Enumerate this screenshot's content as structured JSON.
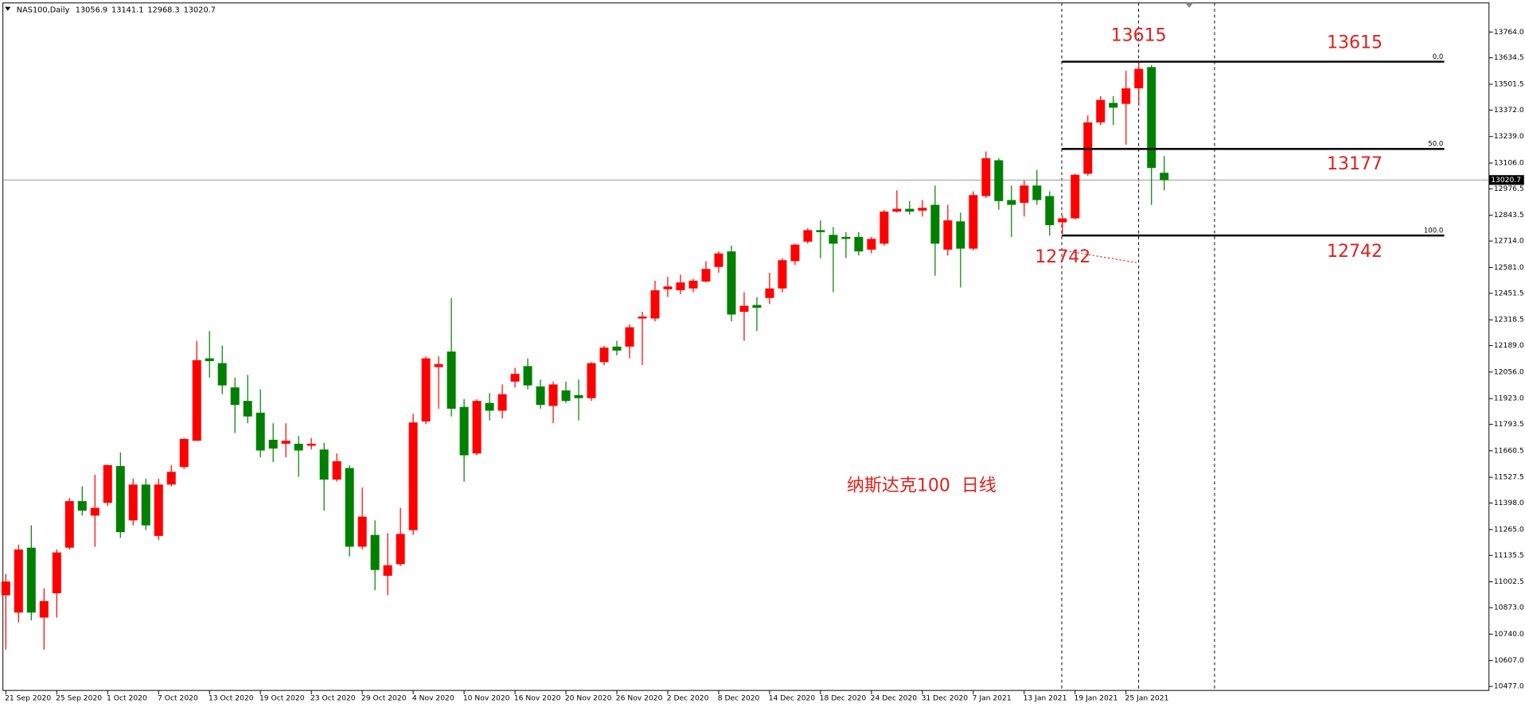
{
  "chart_data": {
    "type": "candlestick",
    "title": "NAS100,Daily",
    "x": [
      "21 Sep 2020",
      null,
      null,
      null,
      "25 Sep 2020",
      null,
      null,
      null,
      "1 Oct 2020",
      null,
      null,
      null,
      "7 Oct 2020",
      null,
      null,
      null,
      "13 Oct 2020",
      null,
      null,
      null,
      "19 Oct 2020",
      null,
      null,
      null,
      "23 Oct 2020",
      null,
      null,
      null,
      "29 Oct 2020",
      null,
      null,
      null,
      "4 Nov 2020",
      null,
      null,
      null,
      "10 Nov 2020",
      null,
      null,
      null,
      "16 Nov 2020",
      null,
      null,
      null,
      "20 Nov 2020",
      null,
      null,
      null,
      "26 Nov 2020",
      null,
      null,
      null,
      "2 Dec 2020",
      null,
      null,
      null,
      "8 Dec 2020",
      null,
      null,
      null,
      "14 Dec 2020",
      null,
      null,
      null,
      "18 Dec 2020",
      null,
      null,
      null,
      "24 Dec 2020",
      null,
      null,
      null,
      "31 Dec 2020",
      null,
      null,
      null,
      "7 Jan 2021",
      null,
      null,
      null,
      "13 Jan 2021",
      null,
      null,
      null,
      "19 Jan 2021",
      null,
      null,
      null,
      "25 Jan 2021",
      null,
      null,
      null
    ],
    "open": [
      10935,
      10848,
      11174,
      10823,
      10945,
      11174,
      11408,
      11335,
      11399,
      11584,
      11311,
      11491,
      11233,
      11491,
      11579,
      11711,
      12125,
      12101,
      11979,
      11911,
      11852,
      11716,
      11696,
      11696,
      11686,
      11667,
      11516,
      11574,
      11179,
      11238,
      11033,
      11091,
      11262,
      11808,
      12081,
      12159,
      11881,
      11647,
      11901,
      11862,
      12008,
      12086,
      11984,
      11886,
      11964,
      11940,
      11925,
      12106,
      12184,
      12184,
      12325,
      12325,
      12472,
      12467,
      12476,
      12511,
      12584,
      12662,
      12359,
      12393,
      12428,
      12476,
      12613,
      12711,
      12769,
      12745,
      12735,
      12735,
      12671,
      12701,
      12862,
      12876,
      12867,
      12896,
      12671,
      12813,
      12676,
      12940,
      13120,
      12920,
      12906,
      12993,
      12940,
      12808,
      12828,
      13052,
      13310,
      13408,
      13403,
      13481,
      13588,
      13056.9
    ],
    "high": [
      11043,
      11189,
      11286,
      10970,
      11165,
      11423,
      11482,
      11540,
      11589,
      11652,
      11521,
      11521,
      11521,
      11589,
      11725,
      12213,
      12262,
      12189,
      12028,
      12042,
      11969,
      11799,
      11799,
      11735,
      11725,
      11701,
      11647,
      11589,
      11477,
      11311,
      11247,
      11374,
      11847,
      12135,
      12135,
      12428,
      11920,
      11920,
      11950,
      11994,
      12077,
      12125,
      12018,
      12008,
      12008,
      12018,
      12106,
      12189,
      12213,
      12296,
      12359,
      12515,
      12535,
      12545,
      12525,
      12613,
      12662,
      12691,
      12457,
      12433,
      12555,
      12628,
      12701,
      12779,
      12818,
      12784,
      12759,
      12759,
      12735,
      12871,
      12969,
      12915,
      12920,
      12993,
      12896,
      12857,
      12964,
      13164,
      13130,
      12993,
      13018,
      13071,
      12964,
      12842,
      13052,
      13345,
      13442,
      13442,
      13569,
      13615,
      13598,
      13141.1
    ],
    "low": [
      10662,
      10799,
      10809,
      10662,
      10823,
      11165,
      11335,
      11179,
      11384,
      11223,
      11286,
      11262,
      11213,
      11482,
      11569,
      11711,
      12028,
      11945,
      11750,
      11799,
      11628,
      11604,
      11628,
      11530,
      11667,
      11360,
      11506,
      11130,
      11165,
      10960,
      10935,
      11082,
      11238,
      11794,
      11872,
      11833,
      11506,
      11638,
      11813,
      11823,
      11979,
      11969,
      11872,
      11799,
      11901,
      11813,
      11911,
      12091,
      12140,
      12125,
      12091,
      12311,
      12433,
      12447,
      12457,
      12506,
      12555,
      12311,
      12213,
      12262,
      12398,
      12457,
      12594,
      12701,
      12628,
      12457,
      12628,
      12642,
      12652,
      12691,
      12857,
      12847,
      12837,
      12540,
      12642,
      12481,
      12667,
      12930,
      12871,
      12735,
      12837,
      12896,
      12742,
      12750,
      12823,
      13042,
      13296,
      13296,
      13198,
      13393,
      12896,
      12968.3
    ],
    "close": [
      11004,
      11165,
      10848,
      10906,
      11150,
      11408,
      11360,
      11374,
      11589,
      11252,
      11491,
      11286,
      11491,
      11555,
      11720,
      12116,
      12111,
      11989,
      11891,
      11833,
      11662,
      11672,
      11711,
      11662,
      11696,
      11516,
      11608,
      11179,
      11330,
      11062,
      11086,
      11243,
      11803,
      12125,
      12096,
      11872,
      11638,
      11911,
      11862,
      11945,
      12047,
      11989,
      11891,
      11994,
      11911,
      11925,
      12101,
      12179,
      12164,
      12281,
      12335,
      12467,
      12486,
      12506,
      12515,
      12574,
      12652,
      12345,
      12389,
      12379,
      12476,
      12618,
      12696,
      12769,
      12759,
      12701,
      12725,
      12662,
      12725,
      12862,
      12876,
      12862,
      12881,
      12701,
      12818,
      12676,
      12945,
      13130,
      12915,
      12896,
      12993,
      12920,
      12794,
      12828,
      13047,
      13310,
      13423,
      13384,
      13481,
      13579,
      13081,
      13020.7
    ],
    "up_color": "#ff0000",
    "down_color": "#008000",
    "ylim": [
      10457,
      13910
    ],
    "yticks": [
      {
        "value": 13764,
        "label": "13764.0"
      },
      13634.5,
      13501.5,
      {
        "value": 13372,
        "label": "13372.0"
      },
      {
        "value": 13239,
        "label": "13239.0"
      },
      {
        "value": 13106,
        "label": "13106.0"
      },
      12976.5,
      12843.5,
      {
        "value": 12714,
        "label": "12714.0"
      },
      {
        "value": 12581,
        "label": "12581.0"
      },
      12451.5,
      12318.5,
      {
        "value": 12189,
        "label": "12189.0"
      },
      {
        "value": 12056,
        "label": "12056.0"
      },
      {
        "value": 11923,
        "label": "11923.0"
      },
      11793.5,
      11660.5,
      11527.5,
      {
        "value": 11398,
        "label": "11398.0"
      },
      {
        "value": 11265,
        "label": "11265.0"
      },
      11135.5,
      11002.5,
      {
        "value": 10873,
        "label": "10873.0"
      },
      {
        "value": 10740,
        "label": "10740.0"
      },
      {
        "value": 10607,
        "label": "10607.0"
      },
      {
        "value": 10477,
        "label": "10477.0"
      }
    ],
    "fib_levels": [
      {
        "level": "0.0",
        "value": 13615
      },
      {
        "level": "50.0",
        "value": 13177
      },
      {
        "level": "100.0",
        "value": 12742
      }
    ],
    "annotation": "纳斯达克100  日线"
  }
}
